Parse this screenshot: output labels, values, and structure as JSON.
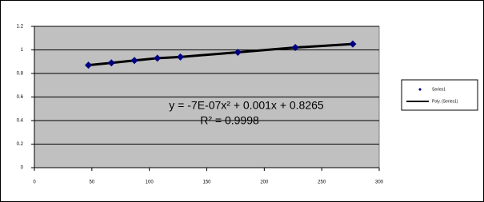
{
  "chart_data": {
    "type": "scatter",
    "x": [
      47,
      67,
      87,
      107,
      127,
      177,
      227,
      277
    ],
    "series": [
      {
        "name": "Series1",
        "color": "#000080",
        "mode": "markers",
        "values": [
          0.87,
          0.89,
          0.91,
          0.93,
          0.94,
          0.98,
          1.02,
          1.05
        ]
      },
      {
        "name": "Poly. (Series1)",
        "color": "#000000",
        "mode": "line",
        "values": [
          0.87,
          0.89,
          0.91,
          0.93,
          0.94,
          0.98,
          1.02,
          1.05
        ]
      }
    ],
    "annotations": [
      "y = -7E-07x² + 0.001x + 0.8265",
      "R² = 0.9998"
    ],
    "xlim": [
      0,
      300
    ],
    "xticks": [
      0,
      50,
      100,
      150,
      200,
      250,
      300
    ],
    "ylim": [
      0,
      1.2
    ],
    "yticks": [
      0,
      0.2,
      0.4,
      0.6,
      0.8,
      1,
      1.2
    ],
    "grid": true,
    "legend": "right",
    "plot_background": "#c0c0c0"
  }
}
